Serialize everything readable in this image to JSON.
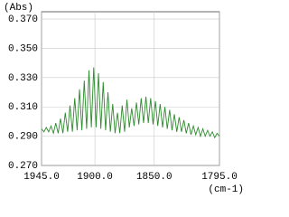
{
  "chart_data": {
    "type": "line",
    "y_label": "(Abs)",
    "x_label": "(cm-1)",
    "x": [
      1945,
      1943,
      1941,
      1939,
      1937,
      1935,
      1933,
      1931,
      1929,
      1927,
      1925,
      1923,
      1921,
      1919,
      1917,
      1915,
      1913,
      1911,
      1909,
      1907,
      1905,
      1903,
      1901,
      1899,
      1897,
      1895,
      1893,
      1891,
      1889,
      1887,
      1885,
      1883,
      1881,
      1879,
      1877,
      1875,
      1873,
      1871,
      1869,
      1867,
      1865,
      1863,
      1861,
      1859,
      1857,
      1855,
      1853,
      1851,
      1849,
      1847,
      1845,
      1843,
      1841,
      1839,
      1837,
      1835,
      1833,
      1831,
      1829,
      1827,
      1825,
      1823,
      1821,
      1819,
      1817,
      1815,
      1813,
      1811,
      1809,
      1807,
      1805,
      1803,
      1801,
      1799,
      1797,
      1795
    ],
    "values": [
      0.295,
      0.293,
      0.296,
      0.293,
      0.297,
      0.292,
      0.299,
      0.292,
      0.302,
      0.292,
      0.306,
      0.293,
      0.311,
      0.293,
      0.316,
      0.294,
      0.322,
      0.294,
      0.328,
      0.295,
      0.335,
      0.296,
      0.337,
      0.296,
      0.333,
      0.295,
      0.327,
      0.294,
      0.32,
      0.293,
      0.312,
      0.292,
      0.306,
      0.292,
      0.311,
      0.293,
      0.315,
      0.296,
      0.309,
      0.297,
      0.313,
      0.298,
      0.316,
      0.299,
      0.317,
      0.299,
      0.316,
      0.298,
      0.314,
      0.297,
      0.312,
      0.296,
      0.31,
      0.295,
      0.308,
      0.294,
      0.305,
      0.293,
      0.303,
      0.293,
      0.301,
      0.292,
      0.299,
      0.291,
      0.297,
      0.291,
      0.296,
      0.29,
      0.295,
      0.29,
      0.294,
      0.29,
      0.293,
      0.289,
      0.292,
      0.29
    ],
    "color": "#2e8b2e",
    "xlim": [
      1945,
      1795
    ],
    "xticks": [
      {
        "value": 1945,
        "label": "1945.0"
      },
      {
        "value": 1900,
        "label": "1900.0"
      },
      {
        "value": 1850,
        "label": "1850.0"
      },
      {
        "value": 1795,
        "label": "1795.0"
      }
    ],
    "ylim": [
      0.27,
      0.375
    ],
    "yticks": [
      {
        "value": 0.27,
        "label": "0.270"
      },
      {
        "value": 0.29,
        "label": "0.290"
      },
      {
        "value": 0.31,
        "label": "0.310"
      },
      {
        "value": 0.33,
        "label": "0.330"
      },
      {
        "value": 0.35,
        "label": "0.350"
      },
      {
        "value": 0.37,
        "label": "0.370"
      }
    ],
    "grid": true
  }
}
